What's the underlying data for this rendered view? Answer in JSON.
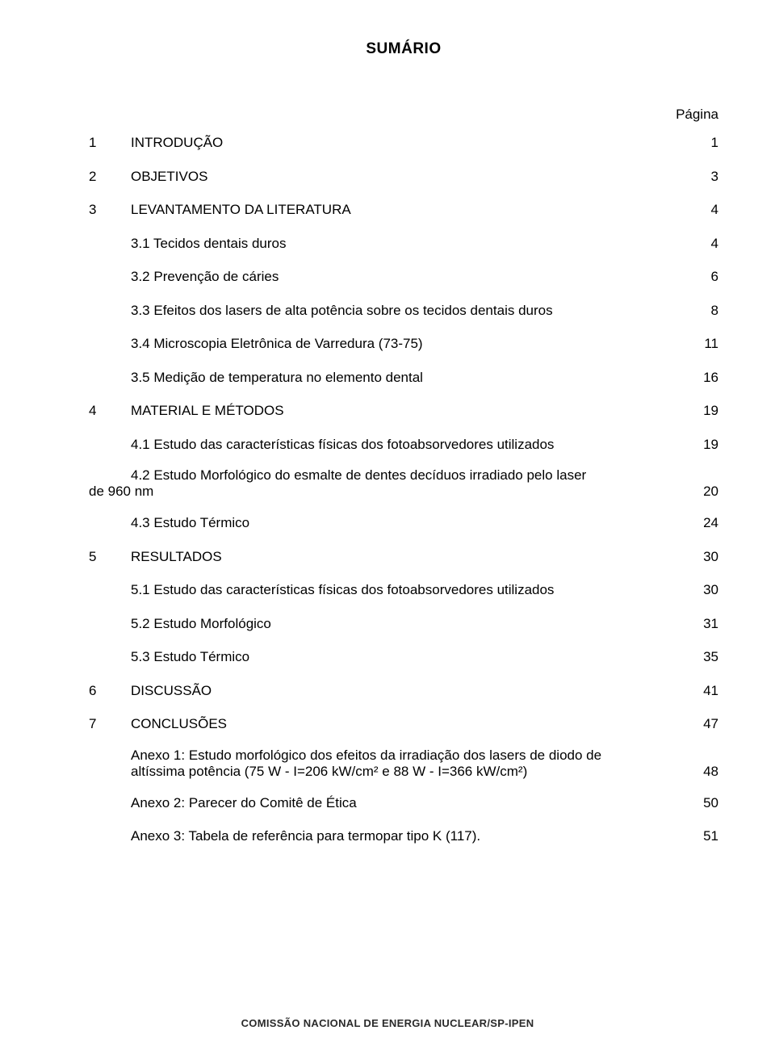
{
  "title": "SUMÁRIO",
  "pagina_label": "Página",
  "entries": [
    {
      "num": "1",
      "label": "INTRODUÇÃO",
      "page": "1",
      "indent": 0
    },
    {
      "num": "2",
      "label": "OBJETIVOS",
      "page": "3",
      "indent": 0
    },
    {
      "num": "3",
      "label": "LEVANTAMENTO DA LITERATURA",
      "page": "4",
      "indent": 0
    },
    {
      "num": "",
      "label": "3.1 Tecidos dentais duros",
      "page": "4",
      "indent": 1
    },
    {
      "num": "",
      "label": "3.2 Prevenção de cáries",
      "page": "6",
      "indent": 1
    },
    {
      "num": "",
      "label": "3.3 Efeitos dos lasers de alta potência sobre os tecidos dentais duros",
      "page": "8",
      "indent": 1
    },
    {
      "num": "",
      "label": "3.4 Microscopia Eletrônica de Varredura (73-75)",
      "page": "11",
      "indent": 1
    },
    {
      "num": "",
      "label": "3.5 Medição de temperatura no elemento dental",
      "page": "16",
      "indent": 1
    },
    {
      "num": "4",
      "label": "MATERIAL E MÉTODOS",
      "page": "19",
      "indent": 0
    },
    {
      "num": "",
      "label": "4.1 Estudo das características físicas dos fotoabsorvedores utilizados",
      "page": "19",
      "indent": 1
    }
  ],
  "entry42_line1": "4.2 Estudo Morfológico do esmalte de dentes decíduos irradiado pelo laser",
  "entry42_line2_prefix": "de 960 nm",
  "entry42_page": "20",
  "entries_after": [
    {
      "num": "",
      "label": "4.3 Estudo Térmico",
      "page": "24",
      "indent": 1
    },
    {
      "num": "5",
      "label": "RESULTADOS",
      "page": "30",
      "indent": 0
    },
    {
      "num": "",
      "label": "5.1 Estudo das características físicas dos fotoabsorvedores utilizados",
      "page": "30",
      "indent": 1
    },
    {
      "num": "",
      "label": "5.2 Estudo Morfológico",
      "page": "31",
      "indent": 1
    },
    {
      "num": "",
      "label": "5.3 Estudo Térmico",
      "page": "35",
      "indent": 1
    },
    {
      "num": "6",
      "label": "DISCUSSÃO",
      "page": "41",
      "indent": 0
    },
    {
      "num": "7",
      "label": "CONCLUSÕES",
      "page": "47",
      "indent": 0
    }
  ],
  "anexo1_line1": "Anexo 1: Estudo morfológico dos efeitos da irradiação dos lasers de diodo de",
  "anexo1_line2_prefix": "altíssima potência (75 W - I=206 kW/cm² e 88 W - I=366 kW/cm²)",
  "anexo1_page": "48",
  "anexo2_label": "Anexo 2: Parecer do Comitê de Ética",
  "anexo2_page": "50",
  "anexo3_label": "Anexo 3: Tabela de referência para termopar tipo K (117).",
  "anexo3_page": "51",
  "footer_stamp": "COMISSÃO NACIONAL DE ENERGIA NUCLEAR/SP-IPEN"
}
